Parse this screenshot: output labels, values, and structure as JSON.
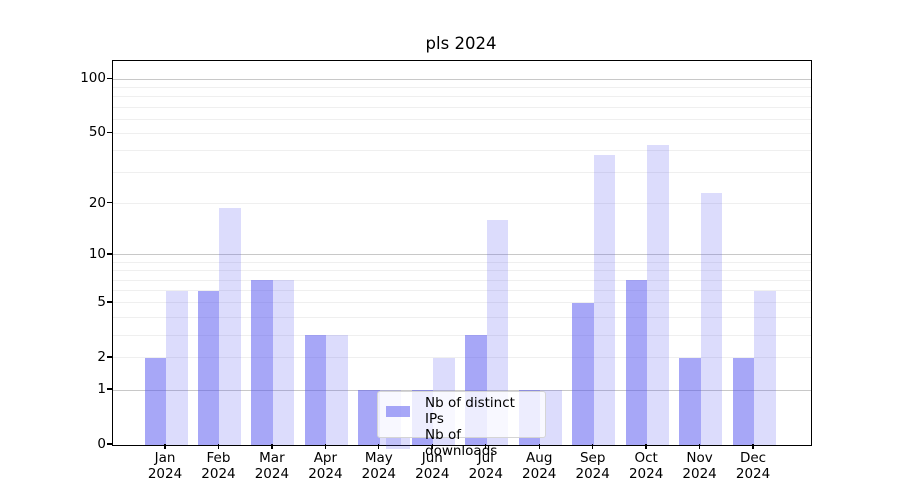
{
  "title": "pls 2024",
  "chart_data": {
    "type": "bar",
    "title": "pls 2024",
    "categories": [
      "Jan 2024",
      "Feb 2024",
      "Mar 2024",
      "Apr 2024",
      "May 2024",
      "Jun 2024",
      "Jul 2024",
      "Aug 2024",
      "Sep 2024",
      "Oct 2024",
      "Nov 2024",
      "Dec 2024"
    ],
    "series": [
      {
        "name": "Nb of distinct IPs",
        "values": [
          2,
          6,
          7,
          3,
          1,
          1,
          3,
          1,
          5,
          7,
          2,
          2
        ],
        "color": "rgba(80,80,240,0.5)"
      },
      {
        "name": "Nb of downloads",
        "values": [
          6,
          19,
          7,
          3,
          1,
          2,
          16,
          1,
          38,
          43,
          23,
          6
        ],
        "color": "rgba(80,80,240,0.2)"
      }
    ],
    "xlabel": "",
    "ylabel": "",
    "yscale": "log(1+x)",
    "ylim": [
      0,
      125
    ],
    "y_tick_values": [
      0,
      1,
      2,
      5,
      10,
      20,
      50,
      100
    ],
    "y_major_gridlines": [
      1,
      10,
      100
    ],
    "y_minor_gridlines": [
      2,
      3,
      4,
      5,
      6,
      7,
      8,
      9,
      20,
      30,
      40,
      50,
      60,
      70,
      80,
      90
    ],
    "grid": true,
    "legend_position": "lower center"
  },
  "colors": {
    "bar_dark_rendered": "#aaaaf4",
    "bar_light_rendered": "#dcdcfa",
    "major_grid": "#c8c8c8",
    "minor_grid": "#efefef",
    "spine": "#000000",
    "background": "#ffffff"
  }
}
